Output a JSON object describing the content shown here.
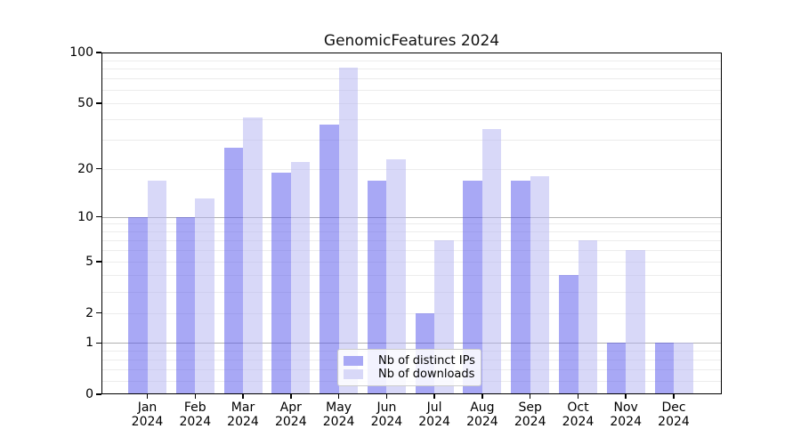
{
  "chart_data": {
    "type": "bar",
    "title": "GenomicFeatures 2024",
    "yscale": "log1p",
    "ylim": [
      0,
      100
    ],
    "xlabel": "",
    "ylabel": "",
    "categories": [
      "Jan",
      "Feb",
      "Mar",
      "Apr",
      "May",
      "Jun",
      "Jul",
      "Aug",
      "Sep",
      "Oct",
      "Nov",
      "Dec"
    ],
    "x_year": "2024",
    "y_ticks": [
      {
        "value": 100,
        "label": "100"
      },
      {
        "value": 50,
        "label": "50"
      },
      {
        "value": 20,
        "label": "20"
      },
      {
        "value": 10,
        "label": "10"
      },
      {
        "value": 5,
        "label": "5"
      },
      {
        "value": 2,
        "label": "2"
      },
      {
        "value": 1,
        "label": "1"
      },
      {
        "value": 0,
        "label": "0"
      }
    ],
    "grid": {
      "minor_values": [
        0.2,
        0.4,
        0.6,
        0.8,
        2,
        3,
        4,
        5,
        6,
        7,
        8,
        9,
        20,
        30,
        40,
        50,
        60,
        70,
        80,
        90
      ],
      "major_values": [
        1,
        10
      ]
    },
    "series": [
      {
        "key": "distinct-ips",
        "name": "Nb of distinct IPs",
        "fill": "rgba(81,81,235,0.5)",
        "legend_color": "#a8a8f5",
        "values": [
          10,
          10,
          27,
          19,
          37,
          17,
          2,
          17,
          17,
          4,
          1,
          1
        ]
      },
      {
        "key": "downloads",
        "name": "Nb of downloads",
        "fill": "rgba(177,177,241,0.5)",
        "legend_color": "#d8d8f8",
        "values": [
          17,
          13,
          41,
          22,
          81,
          23,
          7,
          35,
          18,
          7,
          6,
          1
        ]
      }
    ],
    "legend_position": "lower center",
    "colors": {
      "axis": "#000000",
      "grid_minor": "#ececec",
      "grid_major": "#b0b0b0",
      "background": "#ffffff"
    }
  }
}
